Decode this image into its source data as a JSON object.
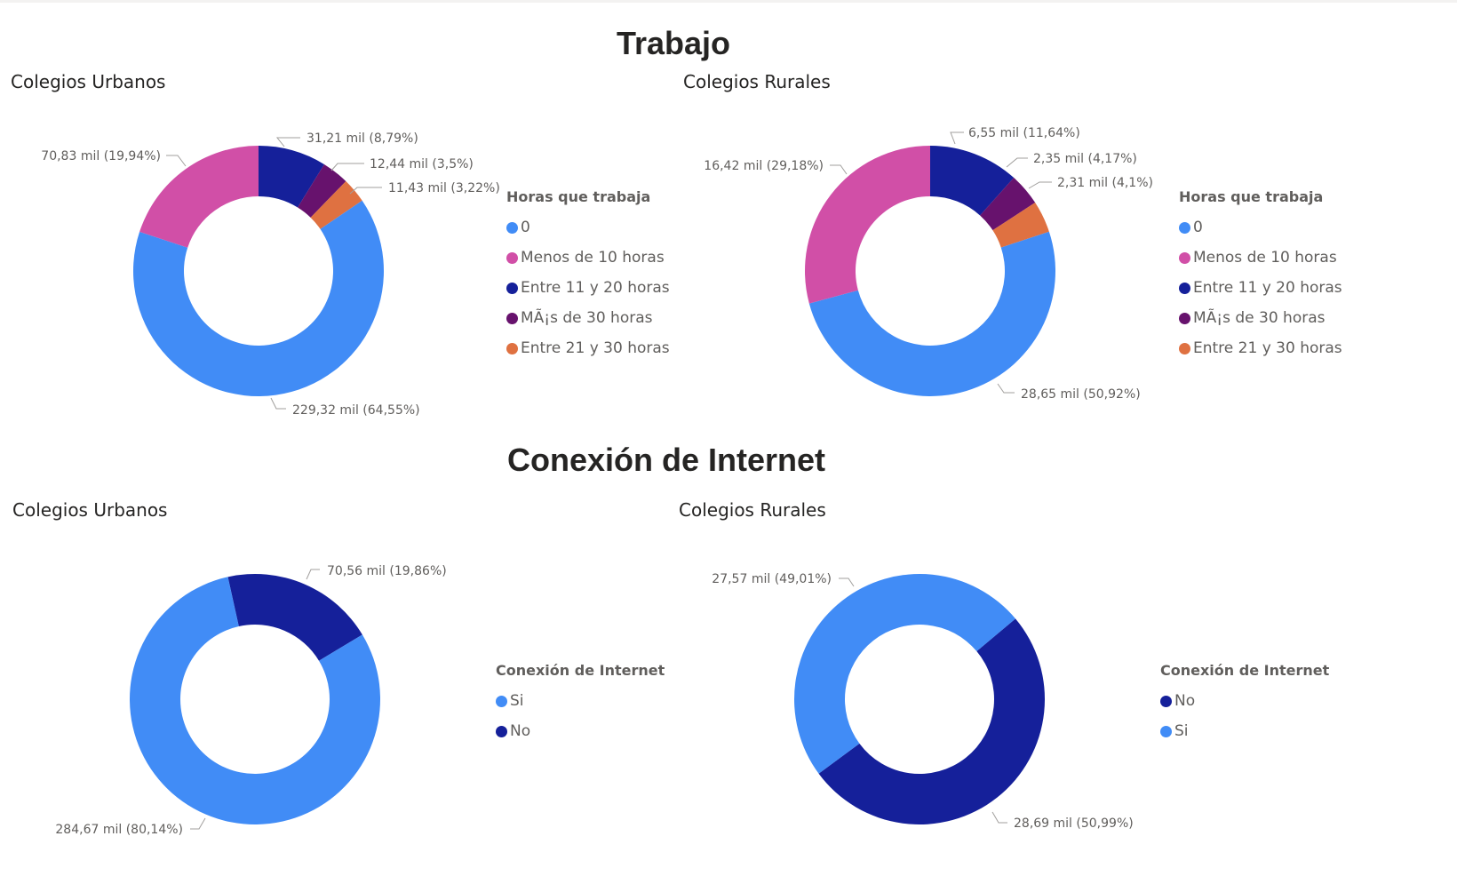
{
  "page": {
    "section_trabajo": "Trabajo",
    "section_internet": "Conexión de Internet"
  },
  "colors": {
    "blue": "#418cf6",
    "pink": "#d14fa7",
    "navy": "#15209a",
    "purple": "#67126d",
    "orange": "#df7141"
  },
  "chart_data": [
    {
      "id": "trabajo-urbanos",
      "type": "pie",
      "title": "Colegios Urbanos",
      "legend_title": "Horas que trabaja",
      "legend": [
        "0",
        "Menos de 10 horas",
        "Entre 11 y 20 horas",
        "MÃ¡s de 30 horas",
        "Entre 21 y 30 horas"
      ],
      "legend_colors": [
        "#418cf6",
        "#d14fa7",
        "#15209a",
        "#67126d",
        "#df7141"
      ],
      "slices": [
        {
          "name": "Entre 11 y 20 horas",
          "value": 31.21,
          "percent": 8.79,
          "label": "31,21 mil (8,79%)",
          "color": "#15209a"
        },
        {
          "name": "MÃ¡s de 30 horas",
          "value": 12.44,
          "percent": 3.5,
          "label": "12,44 mil (3,5%)",
          "color": "#67126d"
        },
        {
          "name": "Entre 21 y 30 horas",
          "value": 11.43,
          "percent": 3.22,
          "label": "11,43 mil (3,22%)",
          "color": "#df7141"
        },
        {
          "name": "0",
          "value": 229.32,
          "percent": 64.55,
          "label": "229,32 mil (64,55%)",
          "color": "#418cf6"
        },
        {
          "name": "Menos de 10 horas",
          "value": 70.83,
          "percent": 19.94,
          "label": "70,83 mil (19,94%)",
          "color": "#d14fa7"
        }
      ]
    },
    {
      "id": "trabajo-rurales",
      "type": "pie",
      "title": "Colegios Rurales",
      "legend_title": "Horas que trabaja",
      "legend": [
        "0",
        "Menos de 10 horas",
        "Entre 11 y 20 horas",
        "MÃ¡s de 30 horas",
        "Entre 21 y 30 horas"
      ],
      "legend_colors": [
        "#418cf6",
        "#d14fa7",
        "#15209a",
        "#67126d",
        "#df7141"
      ],
      "slices": [
        {
          "name": "Entre 11 y 20 horas",
          "value": 6.55,
          "percent": 11.64,
          "label": "6,55 mil (11,64%)",
          "color": "#15209a"
        },
        {
          "name": "MÃ¡s de 30 horas",
          "value": 2.35,
          "percent": 4.17,
          "label": "2,35 mil (4,17%)",
          "color": "#67126d"
        },
        {
          "name": "Entre 21 y 30 horas",
          "value": 2.31,
          "percent": 4.1,
          "label": "2,31 mil (4,1%)",
          "color": "#df7141"
        },
        {
          "name": "0",
          "value": 28.65,
          "percent": 50.92,
          "label": "28,65 mil (50,92%)",
          "color": "#418cf6"
        },
        {
          "name": "Menos de 10 horas",
          "value": 16.42,
          "percent": 29.18,
          "label": "16,42 mil (29,18%)",
          "color": "#d14fa7"
        }
      ]
    },
    {
      "id": "internet-urbanos",
      "type": "pie",
      "title": "Colegios Urbanos",
      "legend_title": "Conexión de Internet",
      "legend": [
        "Si",
        "No"
      ],
      "legend_colors": [
        "#418cf6",
        "#15209a"
      ],
      "slices": [
        {
          "name": "No",
          "value": 70.56,
          "percent": 19.86,
          "label": "70,56 mil (19,86%)",
          "color": "#15209a"
        },
        {
          "name": "Si",
          "value": 284.67,
          "percent": 80.14,
          "label": "284,67 mil (80,14%)",
          "color": "#418cf6"
        }
      ]
    },
    {
      "id": "internet-rurales",
      "type": "pie",
      "title": "Colegios Rurales",
      "legend_title": "Conexión de Internet",
      "legend": [
        "No",
        "Si"
      ],
      "legend_colors": [
        "#15209a",
        "#418cf6"
      ],
      "slices": [
        {
          "name": "No",
          "value": 28.69,
          "percent": 50.99,
          "label": "28,69 mil (50,99%)",
          "color": "#15209a"
        },
        {
          "name": "Si",
          "value": 27.57,
          "percent": 49.01,
          "label": "27,57 mil (49,01%)",
          "color": "#418cf6"
        }
      ]
    }
  ]
}
